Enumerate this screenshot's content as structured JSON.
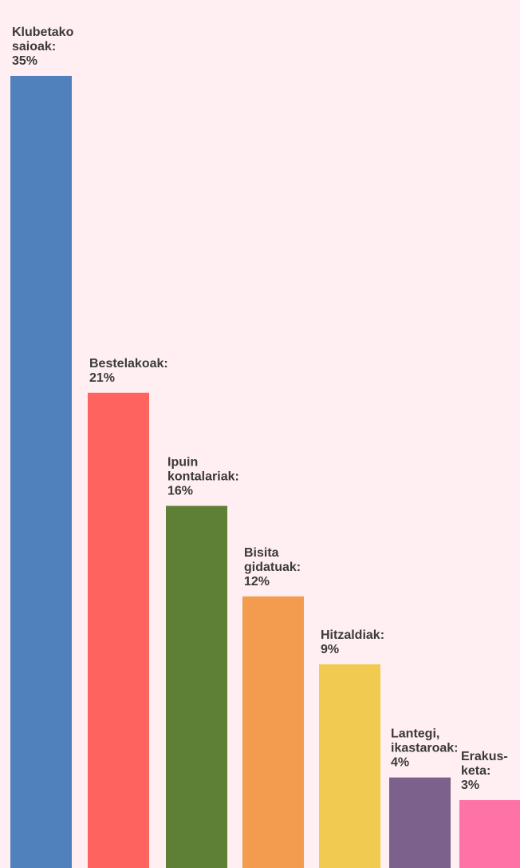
{
  "chart_data": {
    "type": "bar",
    "categories": [
      "Klubetako saioak",
      "Bestelakoak",
      "Ipuin kontalariak",
      "Bisita gidatuak",
      "Hitzaldiak",
      "Lantegi, ikastaroak",
      "Erakusketa"
    ],
    "values": [
      35,
      21,
      16,
      12,
      9,
      4,
      3
    ],
    "data_labels": [
      [
        "Klubetako",
        "saioak:",
        "35%"
      ],
      [
        "Bestelakoak:",
        "21%"
      ],
      [
        "Ipuin",
        "kontalariak:",
        "16%"
      ],
      [
        "Bisita",
        "gidatuak:",
        "12%"
      ],
      [
        "Hitzaldiak:",
        "9%"
      ],
      [
        "Lantegi,",
        "ikastaroak:",
        "4%"
      ],
      [
        "Erakus-",
        "keta:",
        "3%"
      ]
    ],
    "colors": [
      "#5081bd",
      "#fe6360",
      "#5e7f36",
      "#f39c4f",
      "#f0cb4f",
      "#7c618c",
      "#ff72a6"
    ],
    "unit": "%",
    "ylim": [
      0,
      35
    ],
    "grid": false,
    "legend": "none"
  }
}
